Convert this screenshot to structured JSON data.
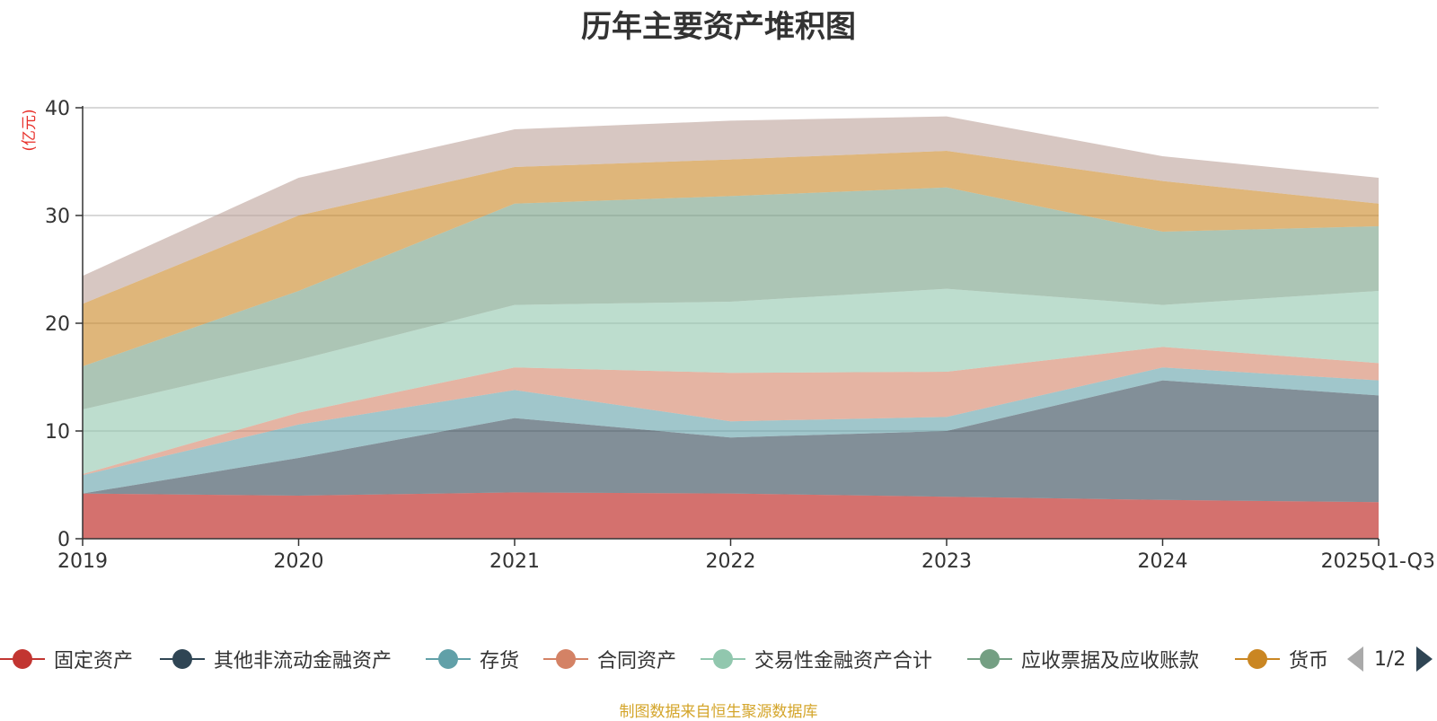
{
  "chart_data": {
    "type": "area",
    "stacked": true,
    "title": "历年主要资产堆积图",
    "ylabel": "(亿元)",
    "ylim": [
      0,
      40
    ],
    "yticks": [
      0,
      10,
      20,
      30,
      40
    ],
    "grid": true,
    "categories": [
      "2019",
      "2020",
      "2021",
      "2022",
      "2023",
      "2024",
      "2025Q1-Q3"
    ],
    "series": [
      {
        "name": "固定资产",
        "color": "#c23531",
        "values": [
          4.2,
          4.0,
          4.3,
          4.2,
          3.9,
          3.6,
          3.4
        ]
      },
      {
        "name": "其他非流动金融资产",
        "color": "#2f4554",
        "values": [
          0.0,
          3.5,
          6.9,
          5.2,
          6.1,
          11.1,
          9.9
        ]
      },
      {
        "name": "存货",
        "color": "#61a0a8",
        "values": [
          1.7,
          3.1,
          2.6,
          1.5,
          1.3,
          1.2,
          1.4
        ]
      },
      {
        "name": "合同资产",
        "color": "#d48265",
        "values": [
          0.1,
          1.1,
          2.1,
          4.5,
          4.2,
          1.9,
          1.6
        ]
      },
      {
        "name": "交易性金融资产合计",
        "color": "#91c7ae",
        "values": [
          6.0,
          4.9,
          5.8,
          6.6,
          7.7,
          3.9,
          6.7
        ]
      },
      {
        "name": "应收票据及应收账款",
        "color": "#749f83",
        "values": [
          4.0,
          6.4,
          9.4,
          9.8,
          9.4,
          6.8,
          6.0
        ]
      },
      {
        "name": "货币",
        "color": "#ca8622",
        "values": [
          5.8,
          7.0,
          3.4,
          3.4,
          3.4,
          4.7,
          2.1
        ]
      },
      {
        "name": "",
        "color": "#bda29a",
        "values": [
          2.6,
          3.5,
          3.5,
          3.6,
          3.2,
          2.3,
          2.4
        ]
      }
    ]
  },
  "legend": {
    "page_text": "1/2"
  },
  "footer": {
    "source_note": "制图数据来自恒生聚源数据库"
  }
}
